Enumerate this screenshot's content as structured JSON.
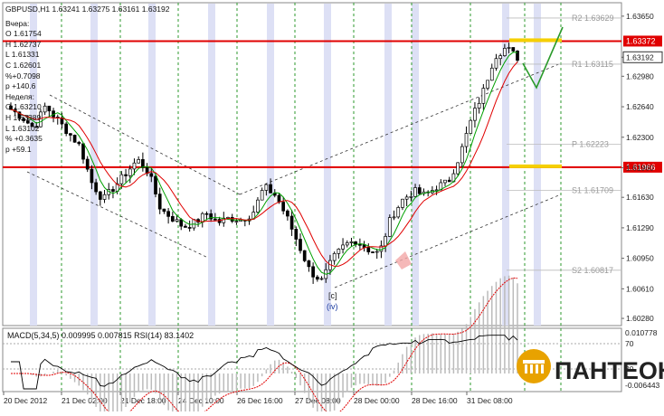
{
  "symbol_line": "GBPUSD,H1  1.63241 1.63275 1.63161 1.63192",
  "yesterday": {
    "title": "Вчера:",
    "o": "O 1.61754",
    "h": "H 1.62737",
    "l": "L 1.61331",
    "c": "C 1.62601",
    "pct": "%+0.7098",
    "p": "p +140.6"
  },
  "week": {
    "title": "Неделя:",
    "o": "O 1.63210",
    "h": "H 1.63389",
    "l": "L 1.63102",
    "pct": "% +0.3635",
    "p": "p +59.1"
  },
  "price_axis": {
    "ticks": [
      "1.63650",
      "1.63192",
      "1.62980",
      "1.62640",
      "1.62300",
      "1.61960",
      "1.61630",
      "1.61290",
      "1.60950",
      "1.60610",
      "1.60280"
    ],
    "current_price": "1.63192",
    "red_levels": [
      "1.63372",
      "1.61966"
    ]
  },
  "pivots": [
    {
      "label": "R2 1.63629"
    },
    {
      "label": "R1 1.63115"
    },
    {
      "label": "P 1.62223"
    },
    {
      "label": "S1 1.61709"
    },
    {
      "label": "S2 1.60817"
    }
  ],
  "wave_labels": [
    "[c]",
    "(iv)"
  ],
  "time_axis": [
    "20 Dec 2012",
    "21 Dec 02:00",
    "21 Dec 18:00",
    "24 Dec 10:00",
    "26 Dec 16:00",
    "27 Dec 08:00",
    "28 Dec 00:00",
    "28 Dec 16:00",
    "31 Dec 08:00"
  ],
  "indicator": {
    "title": "MACD(5,34,5) 0.009995 0.007815  RSI(14) 83.1402",
    "axis": [
      "0.010778",
      "70",
      "30",
      "-0.006443"
    ]
  },
  "logo": "ПАНТЕОН",
  "colors": {
    "red_level": "#e00000",
    "fast_ma": "#00a000",
    "slow_ma": "#e00000",
    "grid_green": "#2e9a2e",
    "session_band": "#dde0f5",
    "bull": "#ffffff",
    "bear": "#000000",
    "logo_gold": "#e8a200"
  },
  "chart_data": {
    "type": "candlestick",
    "title": "GBPUSD,H1",
    "ylim": [
      1.602,
      1.638
    ],
    "close_path": [
      1.6261,
      1.6252,
      1.624,
      1.6265,
      1.625,
      1.6235,
      1.622,
      1.618,
      1.616,
      1.6175,
      1.619,
      1.6205,
      1.619,
      1.615,
      1.614,
      1.613,
      1.6135,
      1.6145,
      1.6135,
      1.614,
      1.6138,
      1.6145,
      1.6175,
      1.6165,
      1.614,
      1.611,
      1.608,
      1.607,
      1.6095,
      1.611,
      1.6115,
      1.6105,
      1.61,
      1.614,
      1.616,
      1.617,
      1.6165,
      1.6175,
      1.618,
      1.621,
      1.625,
      1.628,
      1.632,
      1.633,
      1.6319
    ]
  }
}
